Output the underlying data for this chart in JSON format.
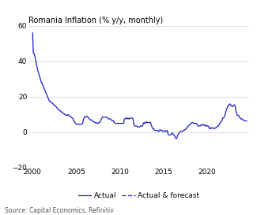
{
  "title": "Romania Inflation (% y/y, monthly)",
  "source": "Source: Capital Economics, Refinitiv",
  "line_color": "#1a1acc",
  "background_color": "#ffffff",
  "ylim": [
    -20,
    60
  ],
  "yticks": [
    -20,
    0,
    20,
    40,
    60
  ],
  "xlim_start": 1999.5,
  "xlim_end": 2024.8,
  "xticks": [
    2000,
    2005,
    2010,
    2015,
    2020
  ],
  "legend_solid": "Actual",
  "legend_dashed": "Actual & forecast",
  "data": [
    [
      2000.0,
      56.0
    ],
    [
      2000.08,
      44.5
    ],
    [
      2000.17,
      44.5
    ],
    [
      2000.25,
      43.0
    ],
    [
      2000.33,
      41.0
    ],
    [
      2000.42,
      39.0
    ],
    [
      2000.5,
      37.0
    ],
    [
      2000.58,
      35.0
    ],
    [
      2000.67,
      33.5
    ],
    [
      2000.75,
      32.0
    ],
    [
      2000.83,
      31.0
    ],
    [
      2000.92,
      29.5
    ],
    [
      2001.0,
      28.0
    ],
    [
      2001.08,
      27.5
    ],
    [
      2001.17,
      26.5
    ],
    [
      2001.25,
      25.5
    ],
    [
      2001.33,
      24.5
    ],
    [
      2001.42,
      23.5
    ],
    [
      2001.5,
      22.5
    ],
    [
      2001.58,
      21.5
    ],
    [
      2001.67,
      20.5
    ],
    [
      2001.75,
      19.5
    ],
    [
      2001.83,
      18.5
    ],
    [
      2001.92,
      17.5
    ],
    [
      2002.0,
      17.5
    ],
    [
      2002.08,
      17.0
    ],
    [
      2002.17,
      16.5
    ],
    [
      2002.25,
      16.5
    ],
    [
      2002.33,
      16.0
    ],
    [
      2002.42,
      15.5
    ],
    [
      2002.5,
      15.0
    ],
    [
      2002.58,
      15.0
    ],
    [
      2002.67,
      14.5
    ],
    [
      2002.75,
      14.0
    ],
    [
      2002.83,
      13.5
    ],
    [
      2002.92,
      13.0
    ],
    [
      2003.0,
      12.5
    ],
    [
      2003.08,
      12.5
    ],
    [
      2003.17,
      12.0
    ],
    [
      2003.25,
      11.5
    ],
    [
      2003.33,
      11.5
    ],
    [
      2003.42,
      11.0
    ],
    [
      2003.5,
      10.5
    ],
    [
      2003.58,
      10.5
    ],
    [
      2003.67,
      10.0
    ],
    [
      2003.75,
      10.0
    ],
    [
      2003.83,
      9.5
    ],
    [
      2003.92,
      9.5
    ],
    [
      2004.0,
      9.5
    ],
    [
      2004.08,
      10.0
    ],
    [
      2004.17,
      9.5
    ],
    [
      2004.25,
      9.0
    ],
    [
      2004.33,
      9.0
    ],
    [
      2004.42,
      8.5
    ],
    [
      2004.5,
      8.0
    ],
    [
      2004.58,
      8.0
    ],
    [
      2004.67,
      7.0
    ],
    [
      2004.75,
      6.0
    ],
    [
      2004.83,
      5.5
    ],
    [
      2004.92,
      5.0
    ],
    [
      2005.0,
      4.5
    ],
    [
      2005.08,
      4.5
    ],
    [
      2005.17,
      4.5
    ],
    [
      2005.25,
      4.5
    ],
    [
      2005.33,
      4.5
    ],
    [
      2005.42,
      4.5
    ],
    [
      2005.5,
      4.5
    ],
    [
      2005.58,
      4.5
    ],
    [
      2005.67,
      4.5
    ],
    [
      2005.75,
      5.5
    ],
    [
      2005.83,
      7.5
    ],
    [
      2005.92,
      8.5
    ],
    [
      2006.0,
      8.5
    ],
    [
      2006.08,
      8.5
    ],
    [
      2006.17,
      9.0
    ],
    [
      2006.25,
      9.0
    ],
    [
      2006.33,
      8.5
    ],
    [
      2006.42,
      8.0
    ],
    [
      2006.5,
      7.5
    ],
    [
      2006.58,
      7.0
    ],
    [
      2006.67,
      7.0
    ],
    [
      2006.75,
      7.0
    ],
    [
      2006.83,
      6.5
    ],
    [
      2006.92,
      6.0
    ],
    [
      2007.0,
      6.0
    ],
    [
      2007.08,
      5.5
    ],
    [
      2007.17,
      5.5
    ],
    [
      2007.25,
      5.5
    ],
    [
      2007.33,
      5.0
    ],
    [
      2007.42,
      5.0
    ],
    [
      2007.5,
      5.0
    ],
    [
      2007.58,
      5.5
    ],
    [
      2007.67,
      5.5
    ],
    [
      2007.75,
      6.0
    ],
    [
      2007.83,
      7.0
    ],
    [
      2007.92,
      8.0
    ],
    [
      2008.0,
      8.5
    ],
    [
      2008.08,
      8.5
    ],
    [
      2008.17,
      8.5
    ],
    [
      2008.25,
      8.5
    ],
    [
      2008.33,
      8.5
    ],
    [
      2008.42,
      8.5
    ],
    [
      2008.5,
      8.5
    ],
    [
      2008.58,
      8.0
    ],
    [
      2008.67,
      7.5
    ],
    [
      2008.75,
      7.5
    ],
    [
      2008.83,
      7.5
    ],
    [
      2008.92,
      7.5
    ],
    [
      2009.0,
      7.0
    ],
    [
      2009.08,
      6.5
    ],
    [
      2009.17,
      6.5
    ],
    [
      2009.25,
      6.5
    ],
    [
      2009.33,
      5.5
    ],
    [
      2009.42,
      5.0
    ],
    [
      2009.5,
      5.0
    ],
    [
      2009.58,
      5.0
    ],
    [
      2009.67,
      5.0
    ],
    [
      2009.75,
      5.0
    ],
    [
      2009.83,
      5.0
    ],
    [
      2009.92,
      5.0
    ],
    [
      2010.0,
      5.0
    ],
    [
      2010.08,
      5.0
    ],
    [
      2010.17,
      5.0
    ],
    [
      2010.25,
      5.0
    ],
    [
      2010.33,
      5.0
    ],
    [
      2010.42,
      5.0
    ],
    [
      2010.5,
      7.5
    ],
    [
      2010.58,
      7.5
    ],
    [
      2010.67,
      8.0
    ],
    [
      2010.75,
      8.0
    ],
    [
      2010.83,
      7.5
    ],
    [
      2010.92,
      8.0
    ],
    [
      2011.0,
      7.5
    ],
    [
      2011.08,
      7.5
    ],
    [
      2011.17,
      8.0
    ],
    [
      2011.25,
      8.0
    ],
    [
      2011.33,
      8.0
    ],
    [
      2011.42,
      8.0
    ],
    [
      2011.5,
      7.5
    ],
    [
      2011.58,
      4.5
    ],
    [
      2011.67,
      3.5
    ],
    [
      2011.75,
      3.5
    ],
    [
      2011.83,
      3.5
    ],
    [
      2011.92,
      3.5
    ],
    [
      2012.0,
      3.0
    ],
    [
      2012.08,
      3.0
    ],
    [
      2012.17,
      3.0
    ],
    [
      2012.25,
      3.0
    ],
    [
      2012.33,
      3.5
    ],
    [
      2012.42,
      3.5
    ],
    [
      2012.5,
      3.5
    ],
    [
      2012.58,
      3.5
    ],
    [
      2012.67,
      5.0
    ],
    [
      2012.75,
      5.5
    ],
    [
      2012.83,
      5.0
    ],
    [
      2012.92,
      5.0
    ],
    [
      2013.0,
      6.0
    ],
    [
      2013.08,
      5.5
    ],
    [
      2013.17,
      5.5
    ],
    [
      2013.25,
      5.5
    ],
    [
      2013.33,
      5.5
    ],
    [
      2013.42,
      5.5
    ],
    [
      2013.5,
      5.5
    ],
    [
      2013.58,
      4.0
    ],
    [
      2013.67,
      3.0
    ],
    [
      2013.75,
      2.0
    ],
    [
      2013.83,
      2.0
    ],
    [
      2013.92,
      1.5
    ],
    [
      2014.0,
      1.0
    ],
    [
      2014.08,
      1.0
    ],
    [
      2014.17,
      1.0
    ],
    [
      2014.25,
      1.0
    ],
    [
      2014.33,
      1.0
    ],
    [
      2014.42,
      0.5
    ],
    [
      2014.5,
      0.5
    ],
    [
      2014.58,
      1.5
    ],
    [
      2014.67,
      1.0
    ],
    [
      2014.75,
      1.0
    ],
    [
      2014.83,
      1.0
    ],
    [
      2014.92,
      0.5
    ],
    [
      2015.0,
      0.5
    ],
    [
      2015.08,
      0.5
    ],
    [
      2015.17,
      1.0
    ],
    [
      2015.25,
      0.5
    ],
    [
      2015.33,
      0.5
    ],
    [
      2015.42,
      1.0
    ],
    [
      2015.5,
      -1.0
    ],
    [
      2015.58,
      -1.5
    ],
    [
      2015.67,
      -1.5
    ],
    [
      2015.75,
      -1.5
    ],
    [
      2015.83,
      -1.5
    ],
    [
      2015.92,
      -0.5
    ],
    [
      2016.0,
      -0.5
    ],
    [
      2016.08,
      -1.0
    ],
    [
      2016.17,
      -1.5
    ],
    [
      2016.25,
      -2.0
    ],
    [
      2016.33,
      -3.0
    ],
    [
      2016.42,
      -3.5
    ],
    [
      2016.5,
      -3.5
    ],
    [
      2016.58,
      -2.0
    ],
    [
      2016.67,
      -1.0
    ],
    [
      2016.75,
      -0.5
    ],
    [
      2016.83,
      0.0
    ],
    [
      2016.92,
      0.5
    ],
    [
      2017.0,
      0.5
    ],
    [
      2017.08,
      0.5
    ],
    [
      2017.17,
      0.5
    ],
    [
      2017.25,
      1.0
    ],
    [
      2017.33,
      1.0
    ],
    [
      2017.42,
      1.5
    ],
    [
      2017.5,
      1.5
    ],
    [
      2017.58,
      2.0
    ],
    [
      2017.67,
      2.5
    ],
    [
      2017.75,
      3.0
    ],
    [
      2017.83,
      3.5
    ],
    [
      2017.92,
      4.0
    ],
    [
      2018.0,
      4.5
    ],
    [
      2018.08,
      4.5
    ],
    [
      2018.17,
      5.0
    ],
    [
      2018.25,
      5.5
    ],
    [
      2018.33,
      5.5
    ],
    [
      2018.42,
      5.0
    ],
    [
      2018.5,
      5.0
    ],
    [
      2018.58,
      5.0
    ],
    [
      2018.67,
      5.0
    ],
    [
      2018.75,
      5.0
    ],
    [
      2018.83,
      4.5
    ],
    [
      2018.92,
      3.5
    ],
    [
      2019.0,
      3.5
    ],
    [
      2019.08,
      3.5
    ],
    [
      2019.17,
      3.5
    ],
    [
      2019.25,
      4.0
    ],
    [
      2019.33,
      4.0
    ],
    [
      2019.42,
      4.0
    ],
    [
      2019.5,
      4.5
    ],
    [
      2019.58,
      4.0
    ],
    [
      2019.67,
      4.0
    ],
    [
      2019.75,
      3.5
    ],
    [
      2019.83,
      3.5
    ],
    [
      2019.92,
      4.0
    ],
    [
      2020.0,
      3.5
    ],
    [
      2020.08,
      3.5
    ],
    [
      2020.17,
      3.0
    ],
    [
      2020.25,
      2.0
    ],
    [
      2020.33,
      2.5
    ],
    [
      2020.42,
      2.0
    ],
    [
      2020.5,
      2.5
    ],
    [
      2020.58,
      2.5
    ],
    [
      2020.67,
      2.5
    ],
    [
      2020.75,
      2.0
    ],
    [
      2020.83,
      2.0
    ],
    [
      2020.92,
      2.5
    ],
    [
      2021.0,
      2.5
    ],
    [
      2021.08,
      3.0
    ],
    [
      2021.17,
      3.5
    ],
    [
      2021.25,
      3.5
    ],
    [
      2021.33,
      4.0
    ],
    [
      2021.42,
      5.0
    ],
    [
      2021.5,
      5.5
    ],
    [
      2021.58,
      6.0
    ],
    [
      2021.67,
      6.5
    ],
    [
      2021.75,
      8.0
    ],
    [
      2021.83,
      8.0
    ],
    [
      2021.92,
      8.5
    ],
    [
      2022.0,
      9.5
    ],
    [
      2022.08,
      11.0
    ],
    [
      2022.17,
      12.5
    ],
    [
      2022.25,
      13.5
    ],
    [
      2022.33,
      14.5
    ],
    [
      2022.42,
      15.0
    ],
    [
      2022.5,
      15.5
    ],
    [
      2022.58,
      16.0
    ],
    [
      2022.67,
      15.5
    ],
    [
      2022.75,
      15.0
    ],
    [
      2022.83,
      14.5
    ],
    [
      2022.92,
      14.5
    ],
    [
      2023.0,
      15.0
    ],
    [
      2023.08,
      15.5
    ],
    [
      2023.17,
      15.0
    ],
    [
      2023.25,
      13.0
    ],
    [
      2023.33,
      11.0
    ],
    [
      2023.42,
      9.5
    ],
    [
      2023.5,
      9.5
    ],
    [
      2023.58,
      9.5
    ],
    [
      2023.67,
      8.5
    ],
    [
      2023.75,
      8.0
    ],
    [
      2023.83,
      7.5
    ],
    [
      2023.92,
      7.5
    ],
    [
      2024.0,
      7.5
    ],
    [
      2024.08,
      7.0
    ],
    [
      2024.17,
      6.5
    ],
    [
      2024.25,
      6.5
    ],
    [
      2024.33,
      6.5
    ],
    [
      2024.42,
      6.5
    ],
    [
      2024.5,
      6.5
    ]
  ],
  "forecast_start": 2024.33
}
